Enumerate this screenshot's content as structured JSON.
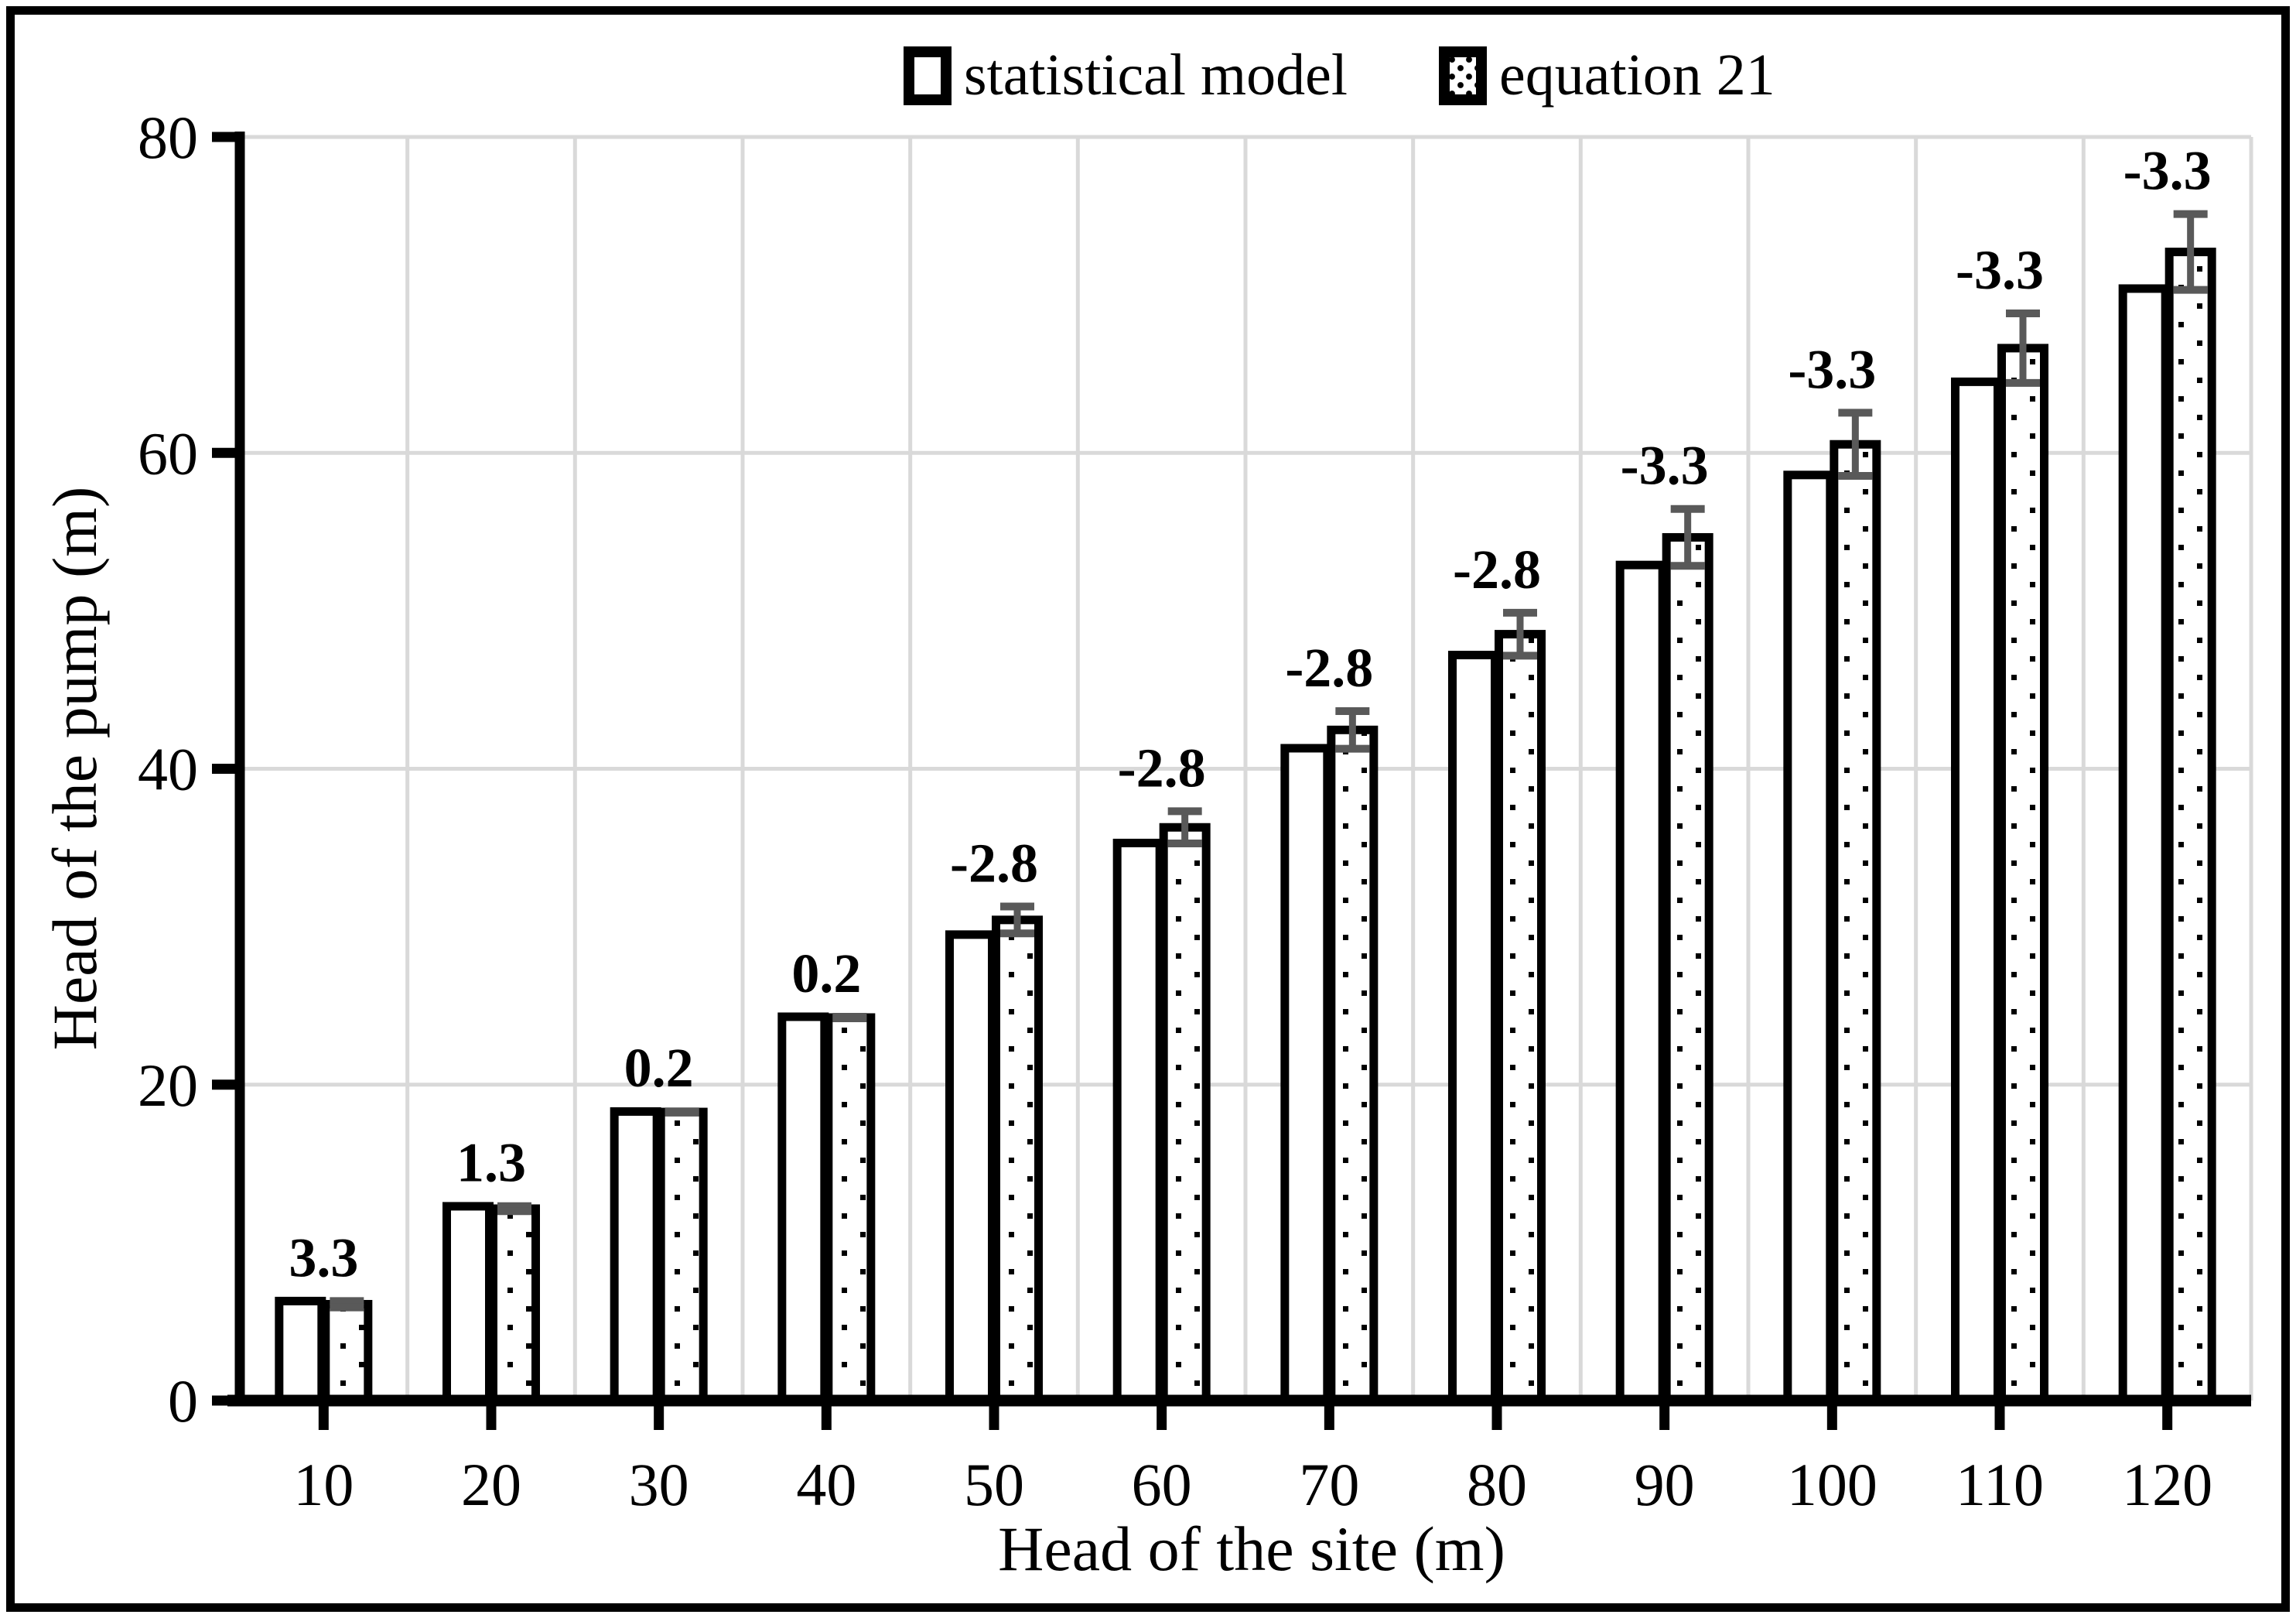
{
  "figure": {
    "background": "#ffffff",
    "border_color": "#000000"
  },
  "chart_data": {
    "type": "bar",
    "title": "",
    "xlabel": "Head of the site (m)",
    "ylabel": "Head of the pump (m)",
    "categories": [
      10,
      20,
      30,
      40,
      50,
      60,
      70,
      80,
      90,
      100,
      110,
      120
    ],
    "series": [
      {
        "name": "statistical model",
        "style": "open-bar",
        "values": [
          6.3,
          12.3,
          18.3,
          24.3,
          29.5,
          35.3,
          41.3,
          47.2,
          52.9,
          58.6,
          64.5,
          70.4
        ]
      },
      {
        "name": "equation 21",
        "style": "dotted-bar",
        "values": [
          6.1,
          12.15,
          18.27,
          24.25,
          30.43,
          36.29,
          42.46,
          48.52,
          54.65,
          60.54,
          66.63,
          72.72
        ],
        "error_bars": [
          0.2,
          0.16,
          0.04,
          0.05,
          0.85,
          1.02,
          1.19,
          1.36,
          1.8,
          2.0,
          2.2,
          2.4
        ]
      }
    ],
    "data_labels": [
      "3.3",
      "1.3",
      "0.2",
      "0.2",
      "-2.8",
      "-2.8",
      "-2.8",
      "-2.8",
      "-3.3",
      "-3.3",
      "-3.3",
      "-3.3"
    ],
    "ylim": [
      0,
      80
    ],
    "ytick_step": 20,
    "yticks": [
      0,
      20,
      40,
      60,
      80
    ],
    "grid": true,
    "legend_position": "top",
    "colors": {
      "bar_outline": "#000000",
      "bar_fill": "#ffffff",
      "gridline": "#d9d9d9",
      "error_bar": "#595959",
      "text": "#000000",
      "background": "#ffffff"
    }
  }
}
